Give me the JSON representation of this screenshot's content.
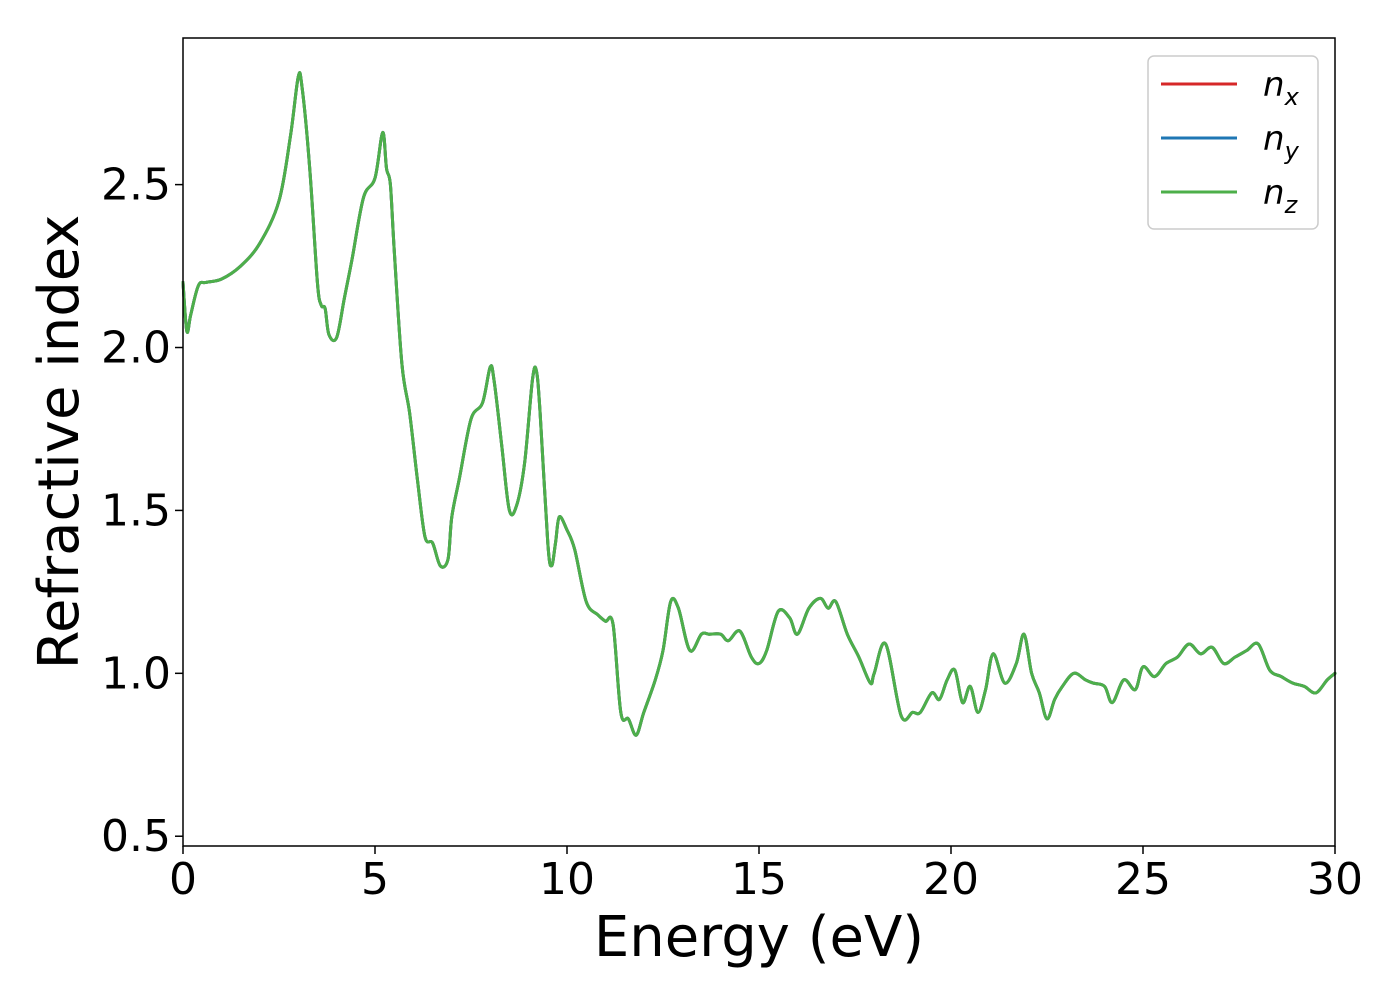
{
  "chart_data": {
    "type": "line",
    "title": "",
    "xlabel": "Energy (eV)",
    "ylabel": "Refractive index",
    "xlim": [
      0,
      30
    ],
    "ylim": [
      0.47,
      2.95
    ],
    "xticks": [
      0,
      5,
      10,
      15,
      20,
      25,
      30
    ],
    "yticks": [
      0.5,
      1.0,
      1.5,
      2.0,
      2.5
    ],
    "xtick_labels": [
      "0",
      "5",
      "10",
      "15",
      "20",
      "25",
      "30"
    ],
    "ytick_labels": [
      "0.5",
      "1.0",
      "1.5",
      "2.0",
      "2.5"
    ],
    "grid": false,
    "legend_position": "upper right",
    "x": [
      0,
      0.1,
      0.2,
      0.4,
      0.6,
      1.0,
      1.5,
      2.0,
      2.5,
      2.8,
      3.0,
      3.1,
      3.3,
      3.5,
      3.6,
      3.7,
      3.8,
      4.0,
      4.2,
      4.4,
      4.7,
      5.0,
      5.2,
      5.3,
      5.4,
      5.5,
      5.7,
      5.9,
      6.1,
      6.3,
      6.5,
      6.7,
      6.9,
      7.0,
      7.2,
      7.5,
      7.8,
      8.0,
      8.1,
      8.3,
      8.5,
      8.7,
      8.9,
      9.1,
      9.2,
      9.3,
      9.5,
      9.6,
      9.7,
      9.8,
      10.0,
      10.2,
      10.5,
      10.8,
      11.0,
      11.2,
      11.4,
      11.6,
      11.8,
      12.0,
      12.3,
      12.5,
      12.7,
      12.9,
      13.2,
      13.5,
      13.7,
      14.0,
      14.2,
      14.5,
      14.8,
      15.0,
      15.2,
      15.5,
      15.8,
      16.0,
      16.3,
      16.6,
      16.8,
      17.0,
      17.3,
      17.6,
      17.9,
      18.0,
      18.3,
      18.7,
      19.0,
      19.2,
      19.5,
      19.7,
      19.9,
      20.1,
      20.3,
      20.5,
      20.7,
      20.9,
      21.1,
      21.4,
      21.7,
      21.9,
      22.1,
      22.3,
      22.5,
      22.7,
      22.9,
      23.2,
      23.5,
      23.7,
      24.0,
      24.2,
      24.5,
      24.8,
      25.0,
      25.3,
      25.6,
      25.9,
      26.2,
      26.5,
      26.8,
      27.1,
      27.4,
      27.7,
      28.0,
      28.3,
      28.6,
      28.9,
      29.2,
      29.5,
      29.8,
      30.0
    ],
    "series": [
      {
        "name": "n_x",
        "label_main": "n",
        "label_sub": "x",
        "color": "#d62728"
      },
      {
        "name": "n_y",
        "label_main": "n",
        "label_sub": "y",
        "color": "#1f77b4"
      },
      {
        "name": "n_z",
        "label_main": "n",
        "label_sub": "z",
        "color": "#4daf4a"
      }
    ],
    "values": [
      2.2,
      2.05,
      2.1,
      2.19,
      2.2,
      2.21,
      2.25,
      2.32,
      2.45,
      2.65,
      2.83,
      2.8,
      2.55,
      2.2,
      2.13,
      2.12,
      2.04,
      2.03,
      2.15,
      2.27,
      2.46,
      2.52,
      2.66,
      2.55,
      2.5,
      2.3,
      1.95,
      1.8,
      1.6,
      1.42,
      1.4,
      1.33,
      1.35,
      1.48,
      1.6,
      1.78,
      1.83,
      1.94,
      1.9,
      1.7,
      1.5,
      1.52,
      1.65,
      1.9,
      1.93,
      1.8,
      1.4,
      1.33,
      1.4,
      1.48,
      1.44,
      1.38,
      1.22,
      1.18,
      1.16,
      1.15,
      0.88,
      0.86,
      0.81,
      0.88,
      0.98,
      1.07,
      1.22,
      1.2,
      1.07,
      1.12,
      1.12,
      1.12,
      1.1,
      1.13,
      1.05,
      1.03,
      1.07,
      1.19,
      1.17,
      1.12,
      1.2,
      1.23,
      1.2,
      1.22,
      1.12,
      1.05,
      0.97,
      1.0,
      1.09,
      0.87,
      0.88,
      0.88,
      0.94,
      0.92,
      0.98,
      1.01,
      0.91,
      0.96,
      0.88,
      0.95,
      1.06,
      0.97,
      1.03,
      1.12,
      1.0,
      0.94,
      0.86,
      0.92,
      0.96,
      1.0,
      0.98,
      0.97,
      0.96,
      0.91,
      0.98,
      0.95,
      1.02,
      0.99,
      1.03,
      1.05,
      1.09,
      1.06,
      1.08,
      1.03,
      1.05,
      1.07,
      1.09,
      1.01,
      0.99,
      0.97,
      0.96,
      0.94,
      0.98,
      1.0
    ]
  }
}
